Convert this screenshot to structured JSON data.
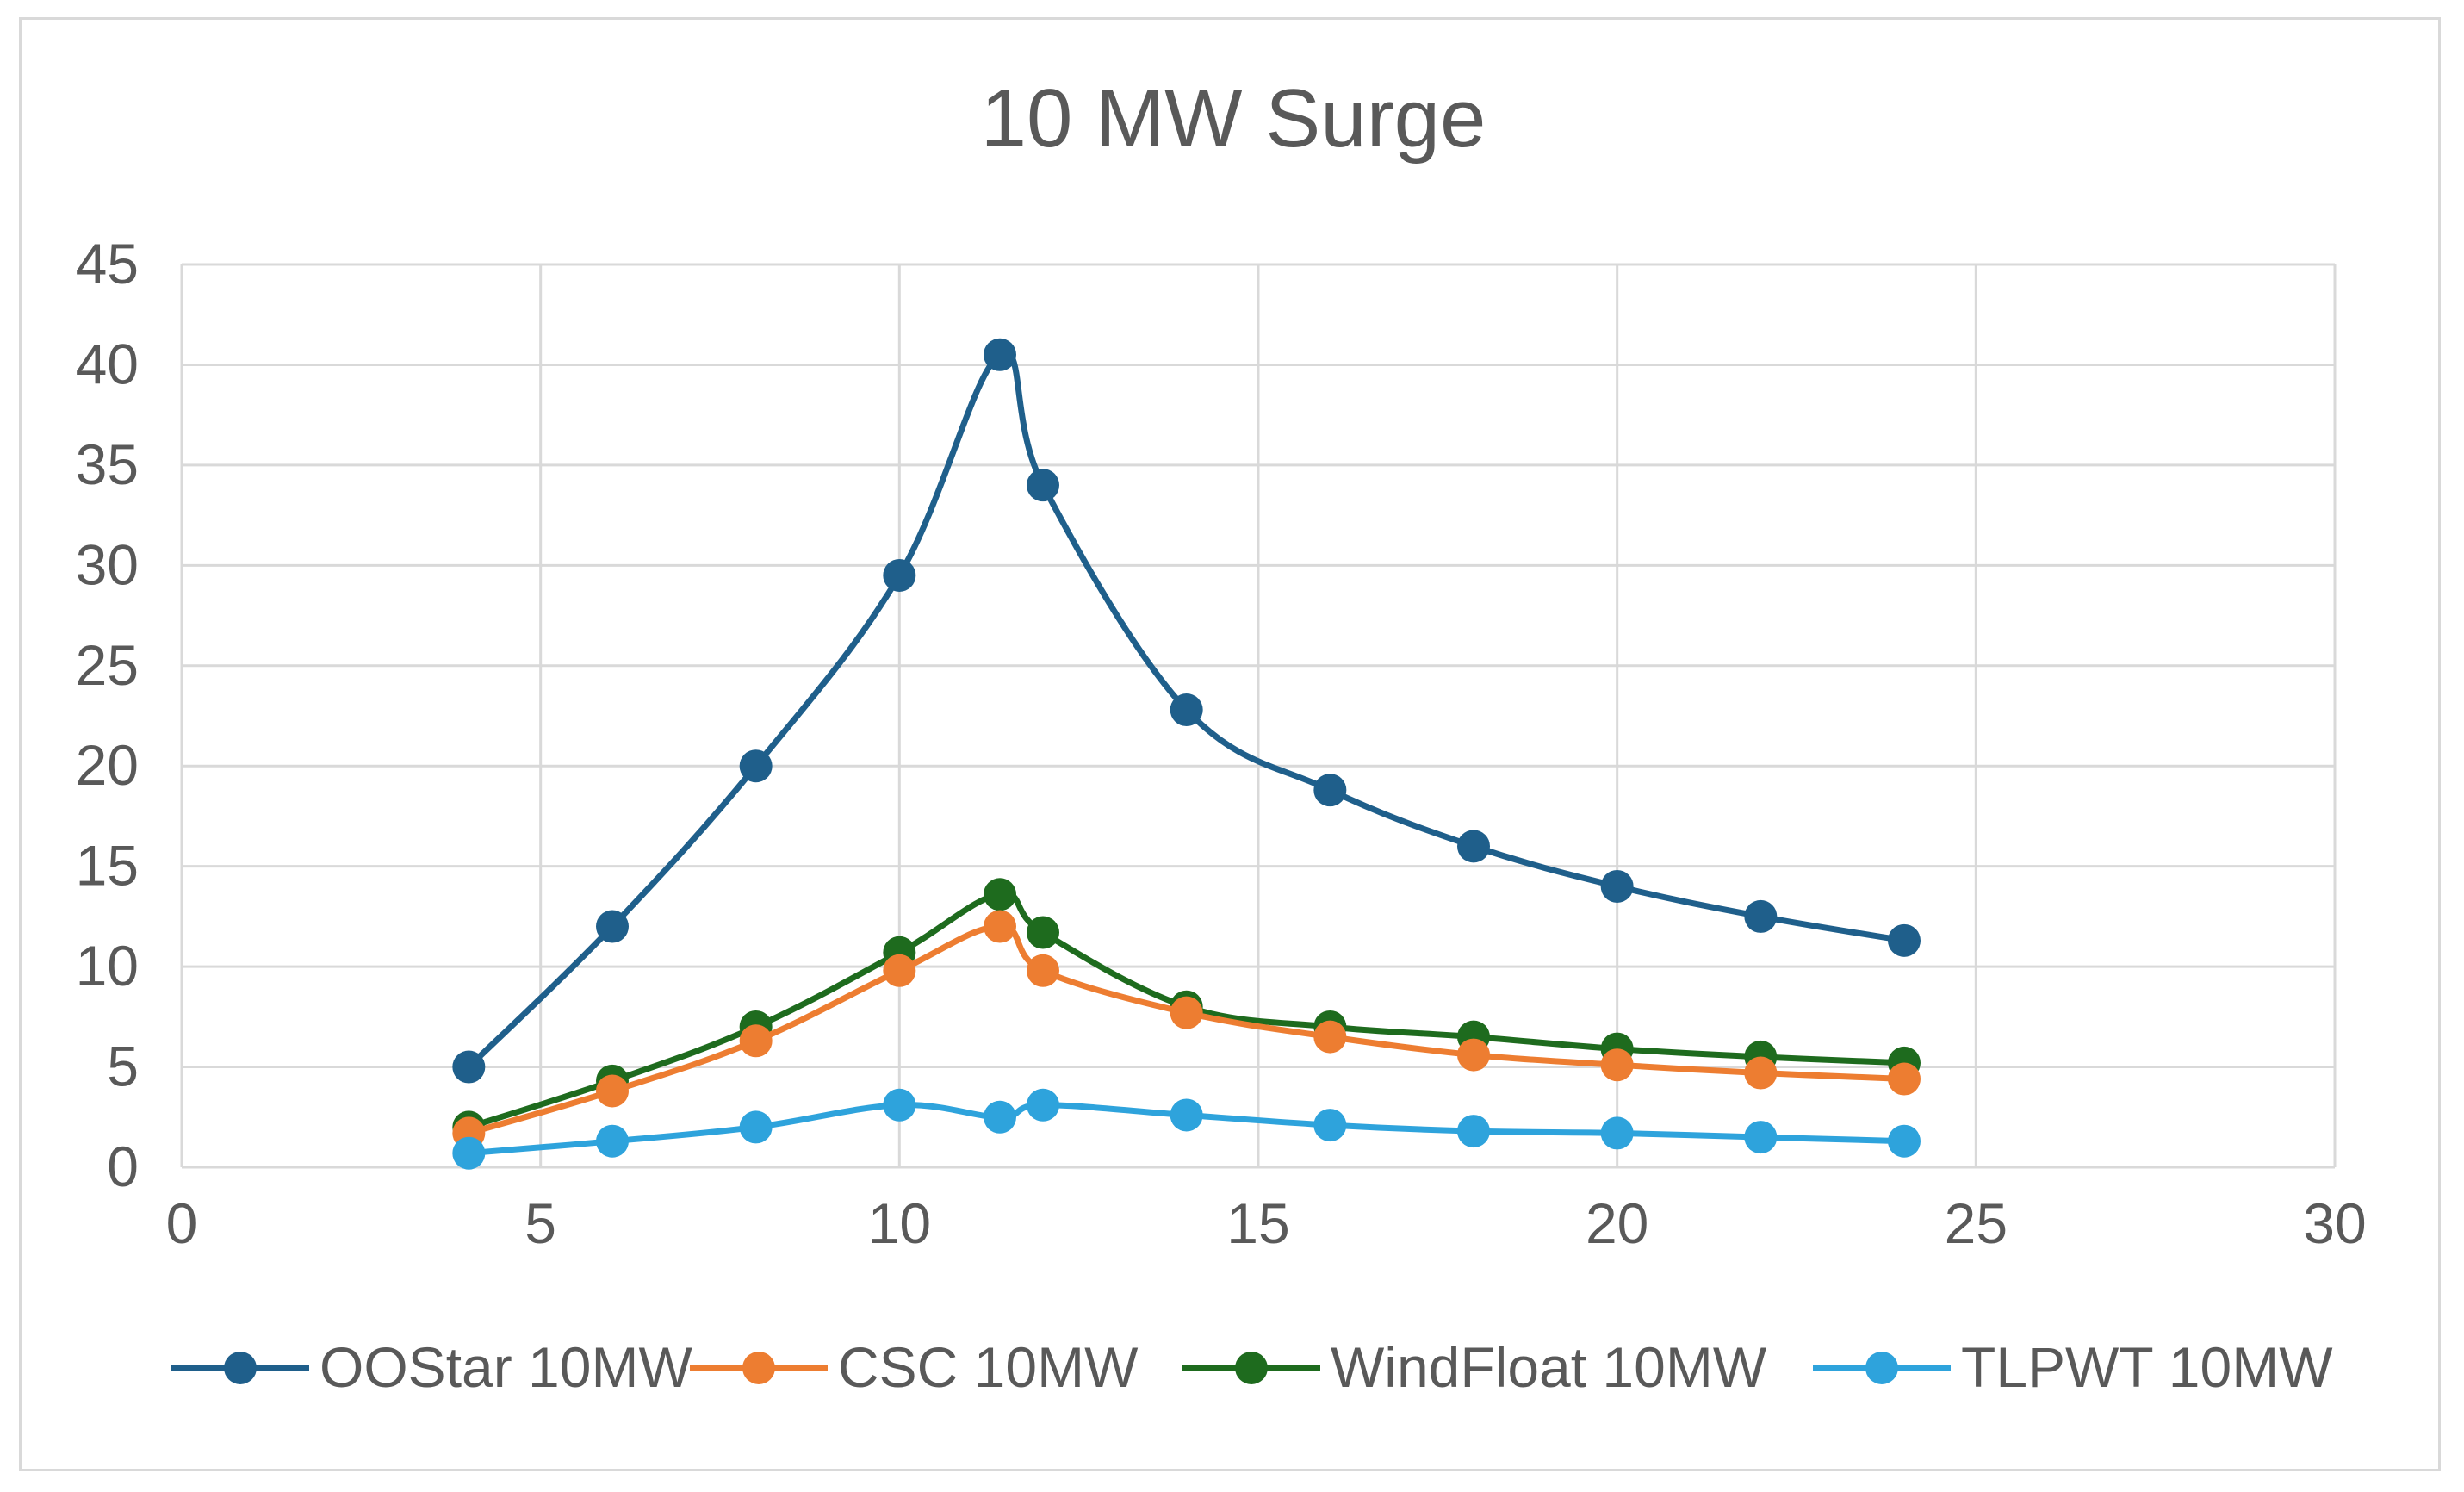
{
  "chart_data": {
    "type": "line",
    "title": "10 MW Surge",
    "xlabel": "",
    "ylabel": "",
    "xlim": [
      0,
      30
    ],
    "ylim": [
      0,
      45
    ],
    "x_ticks": [
      0,
      5,
      10,
      15,
      20,
      25,
      30
    ],
    "y_ticks": [
      0,
      5,
      10,
      15,
      20,
      25,
      30,
      35,
      40,
      45
    ],
    "grid": true,
    "smooth": true,
    "legend_position": "bottom",
    "x": [
      4,
      6,
      8,
      10,
      11.4,
      12,
      14,
      16,
      18,
      20,
      22,
      24
    ],
    "series": [
      {
        "name": "OOStar 10MW",
        "color": "#1f5f8b",
        "values": [
          5.0,
          12.0,
          20.0,
          29.5,
          40.5,
          34.0,
          22.8,
          18.8,
          16.0,
          14.0,
          12.5,
          11.3
        ]
      },
      {
        "name": "CSC 10MW",
        "color": "#ed7d31",
        "values": [
          1.7,
          3.8,
          6.3,
          9.8,
          12.0,
          9.8,
          7.7,
          6.5,
          5.6,
          5.1,
          4.7,
          4.4
        ]
      },
      {
        "name": "WindFloat 10MW",
        "color": "#1e6b1e",
        "values": [
          2.0,
          4.3,
          7.0,
          10.7,
          13.6,
          11.7,
          8.0,
          7.0,
          6.5,
          5.9,
          5.5,
          5.2
        ]
      },
      {
        "name": "TLPWT 10MW",
        "color": "#2ea3dc",
        "values": [
          0.7,
          1.3,
          2.0,
          3.1,
          2.5,
          3.1,
          2.6,
          2.1,
          1.8,
          1.7,
          1.5,
          1.3
        ]
      }
    ]
  }
}
